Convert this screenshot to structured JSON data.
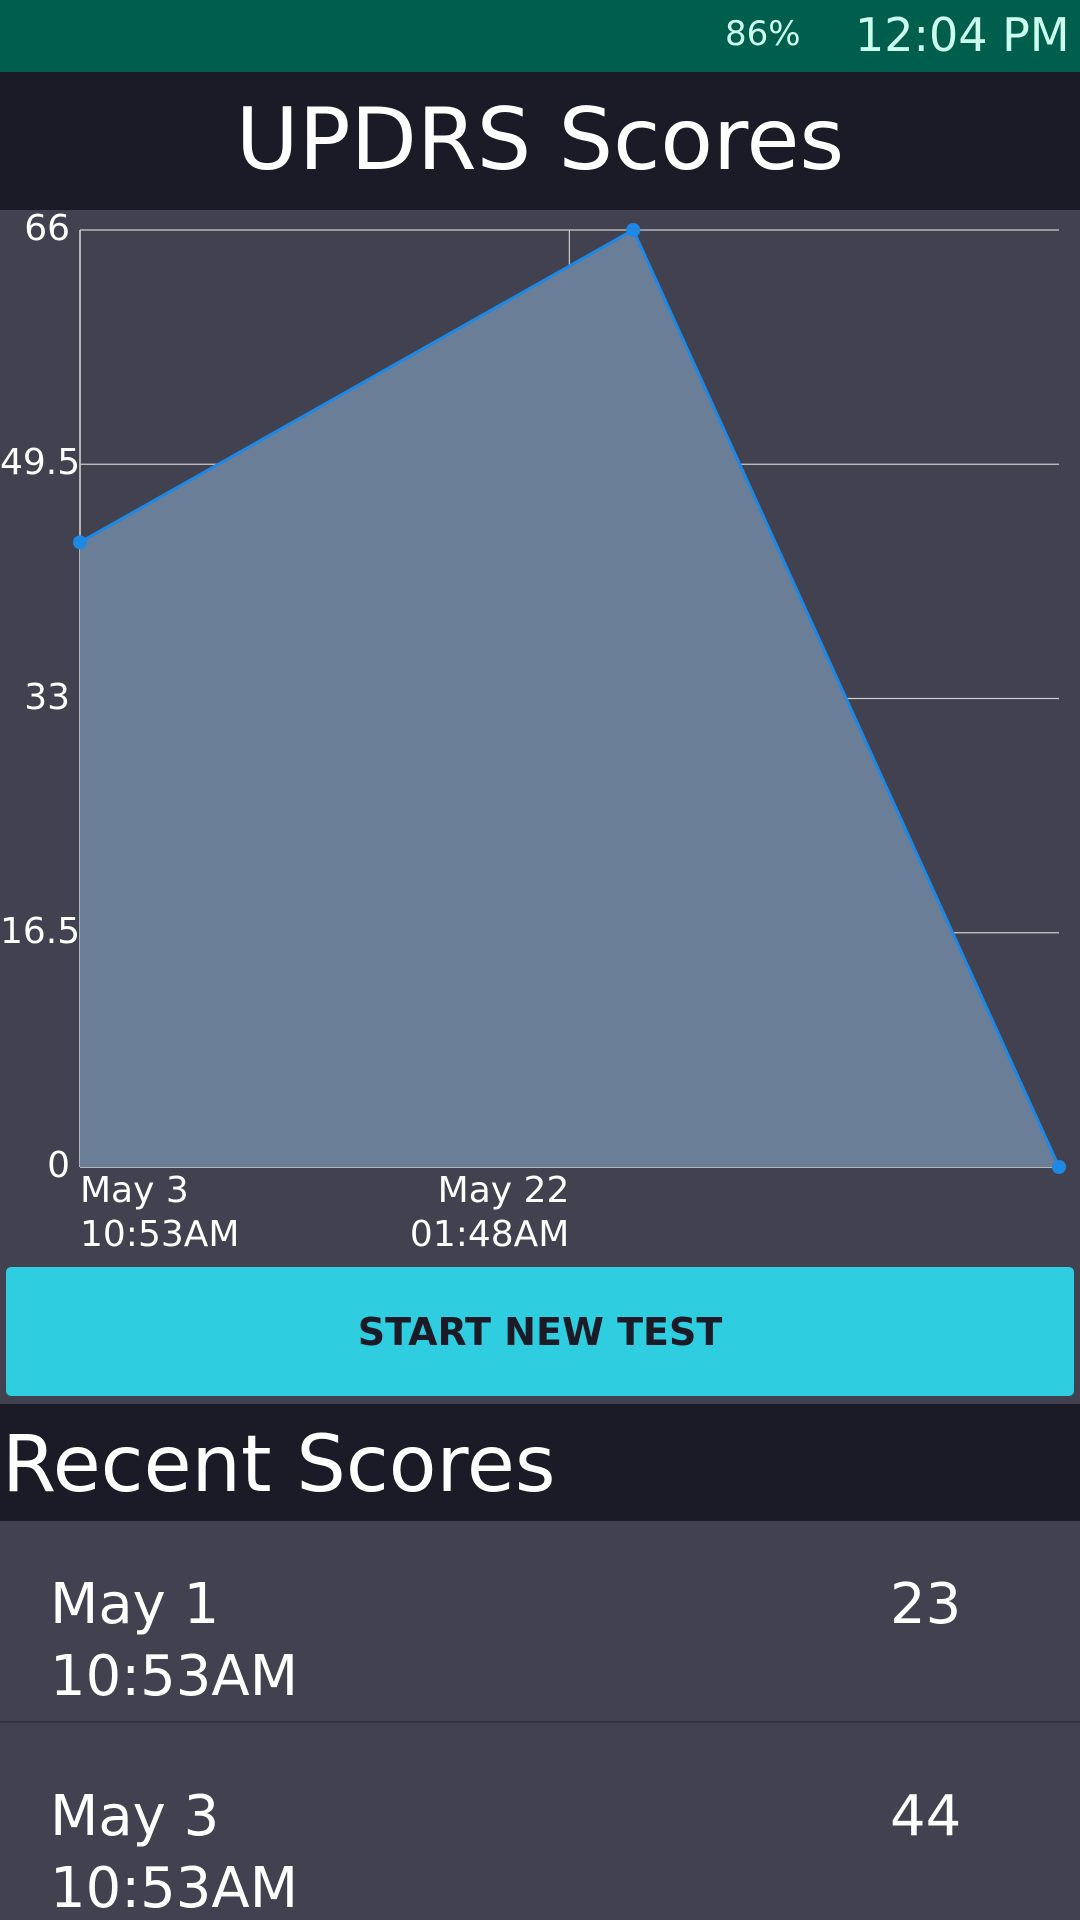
{
  "status_bar": {
    "battery": "86%",
    "time": "12:04 PM"
  },
  "header": {
    "title": "UPDRS Scores"
  },
  "chart_data": {
    "type": "area",
    "x": [
      0,
      21.05,
      37.25
    ],
    "series": [
      {
        "color": "#1e88e5",
        "fill": "#6b7e97",
        "values": [
          44,
          66,
          0
        ]
      }
    ],
    "xlim": [
      0,
      37.25
    ],
    "xticks": [
      {
        "value": 0,
        "label": "May 3\n10:53AM"
      },
      {
        "value": 18.62,
        "label": "May 22\n01:48AM"
      }
    ],
    "ylim": [
      0,
      66
    ],
    "yticks": [
      0,
      16.5,
      33,
      49.5,
      66
    ],
    "grid": true
  },
  "button": {
    "label": "START NEW TEST"
  },
  "recent": {
    "title": "Recent Scores",
    "items": [
      {
        "date": "May 1",
        "time": "10:53AM",
        "score": "23"
      },
      {
        "date": "May 3",
        "time": "10:53AM",
        "score": "44"
      }
    ]
  }
}
